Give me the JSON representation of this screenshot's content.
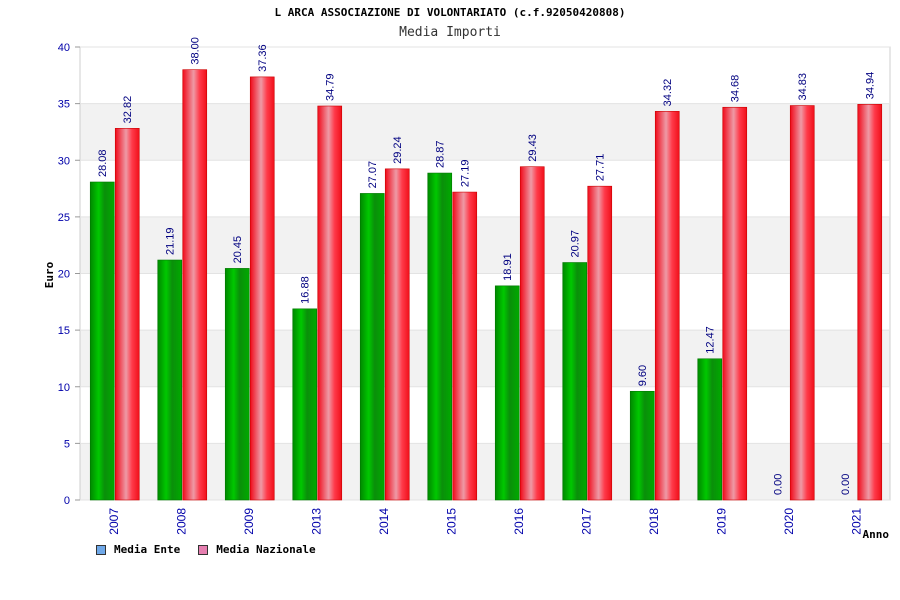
{
  "title": "L ARCA ASSOCIAZIONE DI VOLONTARIATO (c.f.92050420808)",
  "subtitle": "Media Importi",
  "legend": [
    {
      "label": "Media Ente",
      "color": "#6fa8e8"
    },
    {
      "label": "Media Nazionale",
      "color": "#e67fb0"
    }
  ],
  "colors": {
    "ente_bar": "#00b000",
    "nazionale_bar": "#ff2b2b",
    "tick_label": "#0000aa",
    "value_label": "#000080",
    "band_light": "#f2f2f2"
  },
  "chart_data": {
    "type": "bar",
    "categories": [
      "2007",
      "2008",
      "2009",
      "2013",
      "2014",
      "2015",
      "2016",
      "2017",
      "2018",
      "2019",
      "2020",
      "2021"
    ],
    "series": [
      {
        "name": "Media Ente",
        "values": [
          28.08,
          21.19,
          20.45,
          16.88,
          27.07,
          28.87,
          18.91,
          20.97,
          9.6,
          12.47,
          0.0,
          0.0
        ],
        "labels": [
          "28.08",
          "21.19",
          "20.45",
          "16.88",
          "27.07",
          "28.87",
          "18.91",
          "20.97",
          "9.60",
          "12.47",
          "0.00",
          "0.00"
        ]
      },
      {
        "name": "Media Nazionale",
        "values": [
          32.82,
          38.0,
          37.36,
          34.79,
          29.24,
          27.19,
          29.43,
          27.71,
          34.32,
          34.68,
          34.83,
          34.94
        ],
        "labels": [
          "32.82",
          "38.00",
          "37.36",
          "34.79",
          "29.24",
          "27.19",
          "29.43",
          "27.71",
          "34.32",
          "34.68",
          "34.83",
          "34.94"
        ]
      }
    ],
    "ylabel": "Euro",
    "xlabel": "Anno",
    "ylim": [
      0,
      40
    ],
    "yticks": [
      "0",
      "5",
      "10",
      "15",
      "20",
      "25",
      "30",
      "35",
      "40"
    ],
    "grid": true,
    "legend_position": "bottom-left"
  }
}
